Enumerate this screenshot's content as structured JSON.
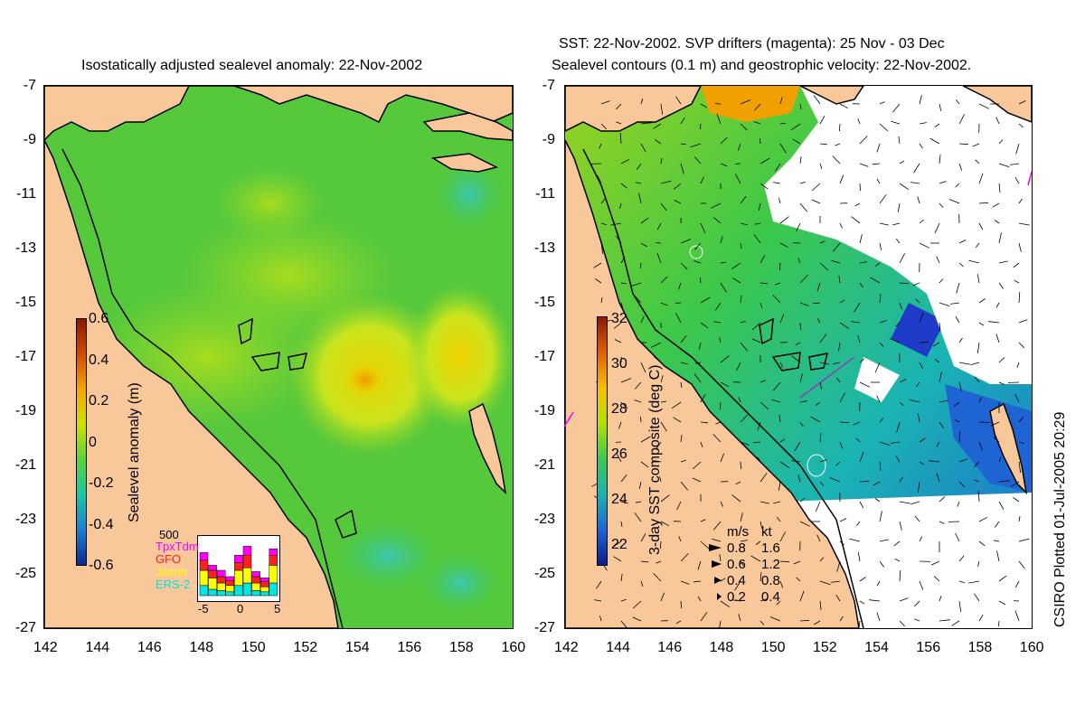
{
  "left_panel": {
    "title": "Isostatically adjusted sealevel anomaly: 22-Nov-2002",
    "colorbar": {
      "label": "Sealevel anomaly (m)",
      "ticks": [
        "0.6",
        "0.4",
        "0.2",
        "0",
        "-0.2",
        "-0.4",
        "-0.6"
      ],
      "colors": [
        "#8b1a00",
        "#d24a00",
        "#f5a600",
        "#d2e000",
        "#5ad23c",
        "#19c8a0",
        "#1e7dd2",
        "#0a2a8c"
      ]
    },
    "inset": {
      "y_label": "500",
      "x_ticks": [
        "-5",
        "0",
        "5"
      ],
      "legend": [
        {
          "name": "TpxTdm",
          "color": "#ff00ff"
        },
        {
          "name": "GFO",
          "color": "#ff2020"
        },
        {
          "name": "Jason",
          "color": "#ffff00"
        },
        {
          "name": "ERS-2",
          "color": "#00e5e5"
        }
      ]
    }
  },
  "right_panel": {
    "title_line1": "SST: 22-Nov-2002. SVP drifters (magenta): 25 Nov - 03 Dec",
    "title_line2": "Sealevel contours (0.1 m) and geostrophic velocity: 22-Nov-2002.",
    "colorbar": {
      "label": "3-day SST composite (deg C)",
      "ticks": [
        "32",
        "30",
        "28",
        "26",
        "24",
        "22"
      ],
      "colors": [
        "#8b1a00",
        "#e06000",
        "#f7c000",
        "#b4e000",
        "#3cc850",
        "#1ab4b4",
        "#1e64d2",
        "#0a1e8c"
      ]
    },
    "velocity_key": {
      "header_ms": "m/s",
      "header_kt": "kt",
      "rows": [
        {
          "ms": "0.8",
          "kt": "1.6"
        },
        {
          "ms": "0.6",
          "kt": "1.2"
        },
        {
          "ms": "0.4",
          "kt": "0.8"
        },
        {
          "ms": "0.2",
          "kt": "0.4"
        }
      ]
    }
  },
  "axes": {
    "y_ticks": [
      "-7",
      "-9",
      "-11",
      "-13",
      "-15",
      "-17",
      "-19",
      "-21",
      "-23",
      "-25",
      "-27"
    ],
    "x_ticks": [
      "142",
      "144",
      "146",
      "148",
      "150",
      "152",
      "154",
      "156",
      "158",
      "160"
    ]
  },
  "credit": "CSIRO Plotted 01-Jul-2005 20:29",
  "colors": {
    "land": "#f8c89a",
    "ocean_anomaly": "#55c83c",
    "ocean_sst": "#2fb84a",
    "cloud": "#ffffff",
    "coast": "#000000"
  }
}
